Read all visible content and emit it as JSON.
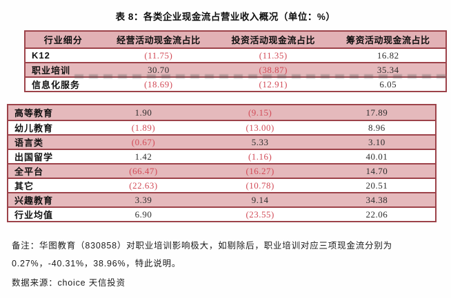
{
  "title": "表 8：各类企业现金流占营业收入概况（单位：%）",
  "colors": {
    "border": "#9c4249",
    "shaded_row": "#e5b9bc",
    "header_bg": "#e2b1b5",
    "negative_value": "#d24b57",
    "text": "#1d1d1d"
  },
  "table": {
    "headers": [
      "行业细分",
      "经营活动现金流占比",
      "投资活动现金流占比",
      "筹资活动现金流占比"
    ],
    "block1_rows": [
      {
        "label": "K12",
        "values": [
          "(11.75)",
          "(11.35)",
          "16.82"
        ],
        "shaded": false
      },
      {
        "label": "职业培训",
        "values": [
          "30.70",
          "(38.87)",
          "35.34"
        ],
        "shaded": true
      },
      {
        "label": "信息化服务",
        "values": [
          "(18.69)",
          "(12.91)",
          "6.05"
        ],
        "shaded": false
      }
    ],
    "block2_rows": [
      {
        "label": "高等教育",
        "values": [
          "1.90",
          "(9.15)",
          "17.89"
        ],
        "shaded": true
      },
      {
        "label": "幼儿教育",
        "values": [
          "(1.89)",
          "(13.00)",
          "8.96"
        ],
        "shaded": false
      },
      {
        "label": "语言类",
        "values": [
          "(0.67)",
          "5.33",
          "3.10"
        ],
        "shaded": true
      },
      {
        "label": "出国留学",
        "values": [
          "1.42",
          "(1.16)",
          "40.01"
        ],
        "shaded": false
      },
      {
        "label": "全平台",
        "values": [
          "(66.47)",
          "(16.27)",
          "14.70"
        ],
        "shaded": true
      },
      {
        "label": "其它",
        "values": [
          "(22.63)",
          "(10.78)",
          "20.51"
        ],
        "shaded": false
      },
      {
        "label": "兴趣教育",
        "values": [
          "3.39",
          "9.14",
          "34.38"
        ],
        "shaded": true
      },
      {
        "label": "行业均值",
        "values": [
          "6.90",
          "(23.55)",
          "22.06"
        ],
        "shaded": false
      }
    ]
  },
  "notes": {
    "line1": "备注：华图教育（830858）对职业培训影响极大，如剔除后，职业培训对应三项现金流分别为",
    "line2": "0.27%，-40.31%，38.96%，特此说明。",
    "source": "数据来源：choice  天信投资"
  }
}
